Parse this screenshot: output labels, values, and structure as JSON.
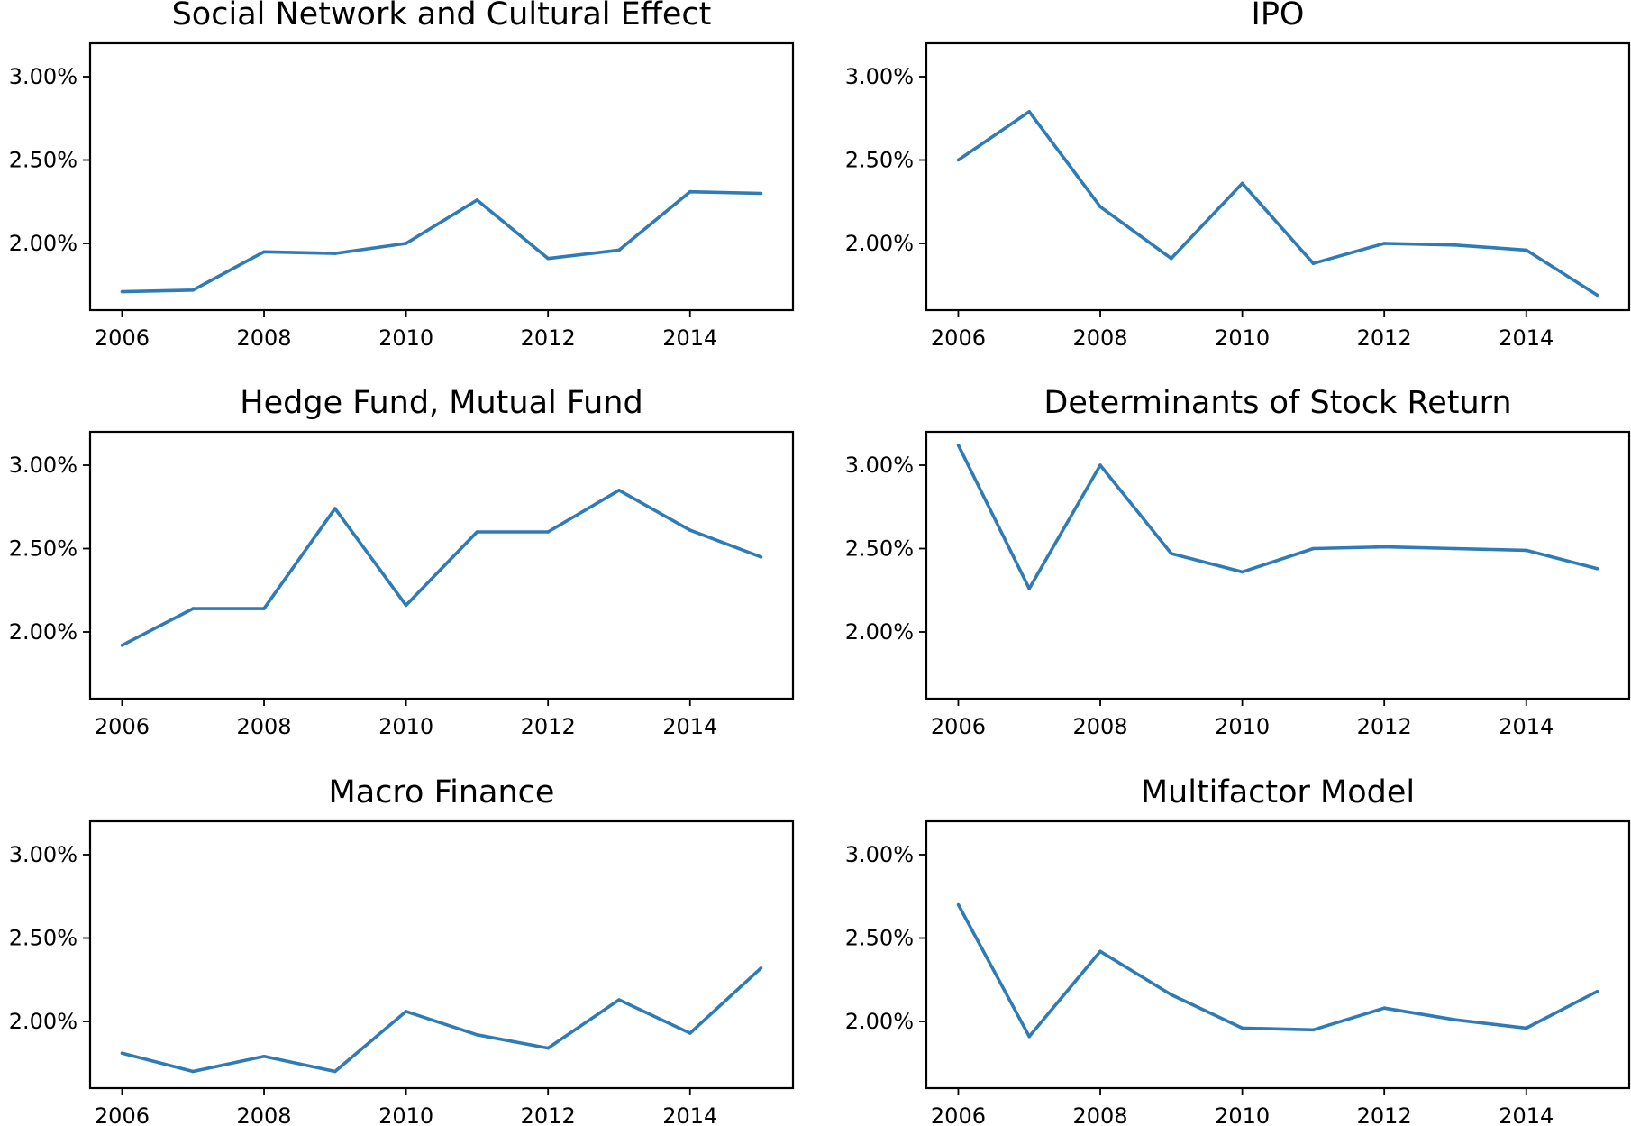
{
  "colors": {
    "series": "#2f7bb5",
    "axis": "#000000",
    "background": "#ffffff"
  },
  "chart_data": [
    {
      "type": "line",
      "title": "Social Network and Cultural Effect",
      "x": [
        2006,
        2007,
        2008,
        2009,
        2010,
        2011,
        2012,
        2013,
        2014,
        2015
      ],
      "y": [
        0.0171,
        0.0172,
        0.0195,
        0.0194,
        0.02,
        0.0226,
        0.0191,
        0.0196,
        0.0231,
        0.023
      ],
      "xticks": [
        2006,
        2008,
        2010,
        2012,
        2014
      ],
      "xtick_labels": [
        "2006",
        "2008",
        "2010",
        "2012",
        "2014"
      ],
      "yticks": [
        0.02,
        0.025,
        0.03
      ],
      "ytick_labels": [
        "2.00%",
        "2.50%",
        "3.00%"
      ],
      "xlim": [
        2005.55,
        2015.45
      ],
      "ylim": [
        0.016,
        0.032
      ],
      "grid": false
    },
    {
      "type": "line",
      "title": "IPO",
      "x": [
        2006,
        2007,
        2008,
        2009,
        2010,
        2011,
        2012,
        2013,
        2014,
        2015
      ],
      "y": [
        0.025,
        0.0279,
        0.0222,
        0.0191,
        0.0236,
        0.0188,
        0.02,
        0.0199,
        0.0196,
        0.0169
      ],
      "xticks": [
        2006,
        2008,
        2010,
        2012,
        2014
      ],
      "xtick_labels": [
        "2006",
        "2008",
        "2010",
        "2012",
        "2014"
      ],
      "yticks": [
        0.02,
        0.025,
        0.03
      ],
      "ytick_labels": [
        "2.00%",
        "2.50%",
        "3.00%"
      ],
      "xlim": [
        2005.55,
        2015.45
      ],
      "ylim": [
        0.016,
        0.032
      ],
      "grid": false
    },
    {
      "type": "line",
      "title": "Hedge Fund, Mutual Fund",
      "x": [
        2006,
        2007,
        2008,
        2009,
        2010,
        2011,
        2012,
        2013,
        2014,
        2015
      ],
      "y": [
        0.0192,
        0.0214,
        0.0214,
        0.0274,
        0.0216,
        0.026,
        0.026,
        0.0285,
        0.0261,
        0.0245
      ],
      "xticks": [
        2006,
        2008,
        2010,
        2012,
        2014
      ],
      "xtick_labels": [
        "2006",
        "2008",
        "2010",
        "2012",
        "2014"
      ],
      "yticks": [
        0.02,
        0.025,
        0.03
      ],
      "ytick_labels": [
        "2.00%",
        "2.50%",
        "3.00%"
      ],
      "xlim": [
        2005.55,
        2015.45
      ],
      "ylim": [
        0.016,
        0.032
      ],
      "grid": false
    },
    {
      "type": "line",
      "title": "Determinants of Stock Return",
      "x": [
        2006,
        2007,
        2008,
        2009,
        2010,
        2011,
        2012,
        2013,
        2014,
        2015
      ],
      "y": [
        0.0312,
        0.0226,
        0.03,
        0.0247,
        0.0236,
        0.025,
        0.0251,
        0.025,
        0.0249,
        0.0238
      ],
      "xticks": [
        2006,
        2008,
        2010,
        2012,
        2014
      ],
      "xtick_labels": [
        "2006",
        "2008",
        "2010",
        "2012",
        "2014"
      ],
      "yticks": [
        0.02,
        0.025,
        0.03
      ],
      "ytick_labels": [
        "2.00%",
        "2.50%",
        "3.00%"
      ],
      "xlim": [
        2005.55,
        2015.45
      ],
      "ylim": [
        0.016,
        0.032
      ],
      "grid": false
    },
    {
      "type": "line",
      "title": "Macro Finance",
      "x": [
        2006,
        2007,
        2008,
        2009,
        2010,
        2011,
        2012,
        2013,
        2014,
        2015
      ],
      "y": [
        0.0181,
        0.017,
        0.0179,
        0.017,
        0.0206,
        0.0192,
        0.0184,
        0.0213,
        0.0193,
        0.0232
      ],
      "xticks": [
        2006,
        2008,
        2010,
        2012,
        2014
      ],
      "xtick_labels": [
        "2006",
        "2008",
        "2010",
        "2012",
        "2014"
      ],
      "yticks": [
        0.02,
        0.025,
        0.03
      ],
      "ytick_labels": [
        "2.00%",
        "2.50%",
        "3.00%"
      ],
      "xlim": [
        2005.55,
        2015.45
      ],
      "ylim": [
        0.016,
        0.032
      ],
      "grid": false
    },
    {
      "type": "line",
      "title": "Multifactor Model",
      "x": [
        2006,
        2007,
        2008,
        2009,
        2010,
        2011,
        2012,
        2013,
        2014,
        2015
      ],
      "y": [
        0.027,
        0.0191,
        0.0242,
        0.0216,
        0.0196,
        0.0195,
        0.0208,
        0.0201,
        0.0196,
        0.0218
      ],
      "xticks": [
        2006,
        2008,
        2010,
        2012,
        2014
      ],
      "xtick_labels": [
        "2006",
        "2008",
        "2010",
        "2012",
        "2014"
      ],
      "yticks": [
        0.02,
        0.025,
        0.03
      ],
      "ytick_labels": [
        "2.00%",
        "2.50%",
        "3.00%"
      ],
      "xlim": [
        2005.55,
        2015.45
      ],
      "ylim": [
        0.016,
        0.032
      ],
      "grid": false
    }
  ]
}
